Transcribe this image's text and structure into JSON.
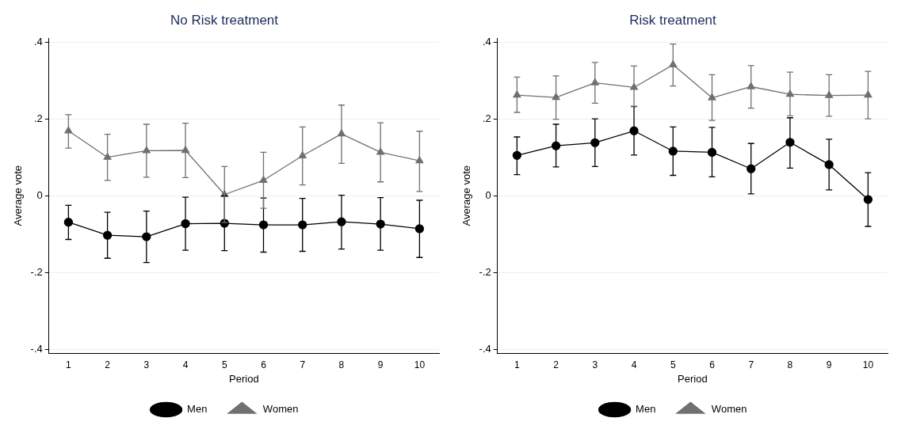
{
  "chart_data": [
    {
      "type": "line",
      "title": "No Risk treatment",
      "xlabel": "Period",
      "ylabel": "Average vote",
      "categories": [
        "1",
        "2",
        "3",
        "4",
        "5",
        "6",
        "7",
        "8",
        "9",
        "10"
      ],
      "ylim": [
        -0.41,
        0.41
      ],
      "yticks": [
        {
          "value": -0.4,
          "label": "-.4"
        },
        {
          "value": -0.2,
          "label": "-.2"
        },
        0,
        {
          "value": 0.2,
          "label": ".2"
        },
        {
          "value": 0.4,
          "label": ".4"
        }
      ],
      "grid": "y",
      "legend": "bottom",
      "series": [
        {
          "name": "Men",
          "color": "#000000",
          "marker": "circle",
          "values": [
            -0.069,
            -0.103,
            -0.107,
            -0.073,
            -0.072,
            -0.076,
            -0.076,
            -0.068,
            -0.074,
            -0.086
          ],
          "errors": [
            [
              -0.114,
              -0.025
            ],
            [
              -0.163,
              -0.043
            ],
            [
              -0.174,
              -0.04
            ],
            [
              -0.142,
              -0.004
            ],
            [
              -0.143,
              0.0
            ],
            [
              -0.147,
              -0.006
            ],
            [
              -0.145,
              -0.007
            ],
            [
              -0.139,
              0.001
            ],
            [
              -0.142,
              -0.005
            ],
            [
              -0.161,
              -0.012
            ]
          ]
        },
        {
          "name": "Women",
          "color": "#707070",
          "marker": "triangle",
          "values": [
            0.169,
            0.1,
            0.117,
            0.118,
            0.003,
            0.04,
            0.104,
            0.161,
            0.113,
            0.091
          ],
          "errors": [
            [
              0.124,
              0.211
            ],
            [
              0.04,
              0.16
            ],
            [
              0.048,
              0.186
            ],
            [
              0.047,
              0.189
            ],
            [
              -0.07,
              0.076
            ],
            [
              -0.033,
              0.113
            ],
            [
              0.028,
              0.179
            ],
            [
              0.084,
              0.236
            ],
            [
              0.036,
              0.19
            ],
            [
              0.011,
              0.168
            ]
          ]
        }
      ]
    },
    {
      "type": "line",
      "title": "Risk treatment",
      "xlabel": "Period",
      "ylabel": "Average vote",
      "categories": [
        "1",
        "2",
        "3",
        "4",
        "5",
        "6",
        "7",
        "8",
        "9",
        "10"
      ],
      "ylim": [
        -0.41,
        0.41
      ],
      "yticks": [
        {
          "value": -0.4,
          "label": "-.4"
        },
        {
          "value": -0.2,
          "label": "-.2"
        },
        0,
        {
          "value": 0.2,
          "label": ".2"
        },
        {
          "value": 0.4,
          "label": ".4"
        }
      ],
      "grid": "y",
      "legend": "bottom",
      "series": [
        {
          "name": "Men",
          "color": "#000000",
          "marker": "circle",
          "values": [
            0.105,
            0.13,
            0.138,
            0.169,
            0.116,
            0.113,
            0.07,
            0.139,
            0.081,
            -0.01
          ],
          "errors": [
            [
              0.055,
              0.153
            ],
            [
              0.075,
              0.186
            ],
            [
              0.076,
              0.2
            ],
            [
              0.106,
              0.232
            ],
            [
              0.053,
              0.179
            ],
            [
              0.049,
              0.178
            ],
            [
              0.005,
              0.136
            ],
            [
              0.072,
              0.203
            ],
            [
              0.015,
              0.147
            ],
            [
              -0.08,
              0.06
            ]
          ]
        },
        {
          "name": "Women",
          "color": "#707070",
          "marker": "triangle",
          "values": [
            0.262,
            0.256,
            0.294,
            0.282,
            0.341,
            0.255,
            0.284,
            0.264,
            0.261,
            0.262
          ],
          "errors": [
            [
              0.217,
              0.309
            ],
            [
              0.199,
              0.312
            ],
            [
              0.241,
              0.347
            ],
            [
              0.233,
              0.338
            ],
            [
              0.286,
              0.395
            ],
            [
              0.196,
              0.315
            ],
            [
              0.228,
              0.339
            ],
            [
              0.208,
              0.322
            ],
            [
              0.207,
              0.315
            ],
            [
              0.2,
              0.324
            ]
          ]
        }
      ]
    }
  ]
}
